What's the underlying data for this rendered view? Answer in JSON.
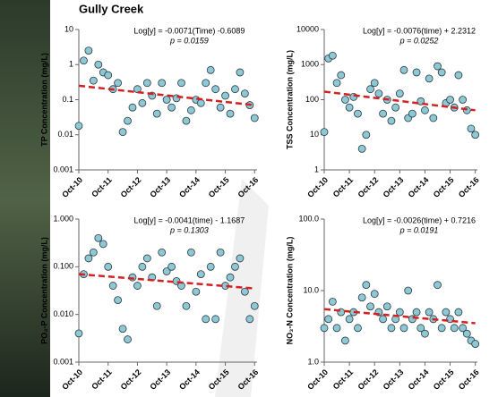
{
  "title": "Gully Creek",
  "chart_data": [
    {
      "type": "scatter",
      "y_label": "TP Concentration (mg/L)",
      "log_y": true,
      "annotation": [
        "Log[y] = -0.0071(Time) -0.6089",
        "p = 0.0159"
      ],
      "ylim": [
        0.001,
        10
      ],
      "yticks": [
        10,
        1,
        0.1,
        0.01,
        0.001
      ],
      "xlim": [
        "2010-10",
        "2016-11"
      ],
      "xticks": [
        {
          "value": "2010-10",
          "label": "Oct-10"
        },
        {
          "value": "2011-10",
          "label": "Oct-11"
        },
        {
          "value": "2012-10",
          "label": "Oct-12"
        },
        {
          "value": "2013-10",
          "label": "Oct-13"
        },
        {
          "value": "2014-10",
          "label": "Oct-14"
        },
        {
          "value": "2015-10",
          "label": "Oct-15"
        },
        {
          "value": "2016-10",
          "label": "Oct-16"
        }
      ],
      "color": "#8ec8d4",
      "x": [
        "2010-10",
        "2010-12",
        "2011-02",
        "2011-04",
        "2011-06",
        "2011-08",
        "2011-10",
        "2011-12",
        "2012-02",
        "2012-04",
        "2012-06",
        "2012-08",
        "2012-10",
        "2012-12",
        "2013-02",
        "2013-04",
        "2013-06",
        "2013-08",
        "2013-10",
        "2013-12",
        "2014-02",
        "2014-04",
        "2014-06",
        "2014-08",
        "2014-10",
        "2014-12",
        "2015-02",
        "2015-04",
        "2015-06",
        "2015-08",
        "2015-10",
        "2015-12",
        "2016-02",
        "2016-04",
        "2016-06",
        "2016-08",
        "2016-10"
      ],
      "values": [
        0.018,
        1.3,
        2.5,
        0.35,
        1.0,
        0.6,
        0.5,
        0.2,
        0.3,
        0.012,
        0.025,
        0.06,
        0.2,
        0.08,
        0.3,
        0.13,
        0.04,
        0.3,
        0.1,
        0.06,
        0.11,
        0.3,
        0.025,
        0.05,
        0.1,
        0.08,
        0.3,
        0.7,
        0.2,
        0.06,
        0.13,
        0.04,
        0.2,
        0.6,
        0.15,
        0.07,
        0.03
      ],
      "trend": {
        "color": "#d42020",
        "x": [
          "2010-10",
          "2016-10"
        ],
        "values": [
          0.25,
          0.07
        ]
      }
    },
    {
      "type": "scatter",
      "y_label": "TSS Concentration (mg/L)",
      "log_y": true,
      "annotation": [
        "Log[y] = -0.0076(time) + 2.2312",
        "p = 0.0252"
      ],
      "ylim": [
        1,
        10000
      ],
      "yticks": [
        10000,
        1000,
        100,
        10,
        1
      ],
      "xlim": [
        "2010-10",
        "2016-11"
      ],
      "xticks": [
        {
          "value": "2010-10",
          "label": "Oct-10"
        },
        {
          "value": "2011-10",
          "label": "Oct-11"
        },
        {
          "value": "2012-10",
          "label": "Oct-12"
        },
        {
          "value": "2013-10",
          "label": "Oct-13"
        },
        {
          "value": "2014-10",
          "label": "Oct-14"
        },
        {
          "value": "2015-10",
          "label": "Oct-15"
        },
        {
          "value": "2016-10",
          "label": "Oct-16"
        }
      ],
      "color": "#8ec8d4",
      "x": [
        "2010-10",
        "2010-12",
        "2011-02",
        "2011-04",
        "2011-06",
        "2011-08",
        "2011-10",
        "2011-12",
        "2012-02",
        "2012-04",
        "2012-06",
        "2012-08",
        "2012-10",
        "2012-12",
        "2013-02",
        "2013-04",
        "2013-06",
        "2013-08",
        "2013-10",
        "2013-12",
        "2014-02",
        "2014-04",
        "2014-06",
        "2014-08",
        "2014-10",
        "2014-12",
        "2015-02",
        "2015-04",
        "2015-06",
        "2015-08",
        "2015-10",
        "2015-12",
        "2016-02",
        "2016-04",
        "2016-06",
        "2016-08",
        "2016-10"
      ],
      "values": [
        12,
        1500,
        1800,
        300,
        500,
        100,
        60,
        120,
        40,
        4,
        10,
        200,
        300,
        150,
        40,
        100,
        25,
        60,
        150,
        700,
        30,
        40,
        600,
        90,
        50,
        400,
        30,
        900,
        600,
        80,
        100,
        60,
        500,
        100,
        50,
        15,
        10
      ],
      "trend": {
        "color": "#d42020",
        "x": [
          "2010-10",
          "2016-10"
        ],
        "values": [
          170,
          50
        ]
      }
    },
    {
      "type": "scatter",
      "y_label": "PO₄-P Concentration (mg/L)",
      "log_y": true,
      "annotation": [
        "Log[y] = -0.0041(time) - 1.1687",
        "p = 0.1303"
      ],
      "ylim": [
        0.001,
        1
      ],
      "yticks": [
        {
          "value": 1,
          "label": "1.000"
        },
        {
          "value": 0.1,
          "label": "0.100"
        },
        {
          "value": 0.01,
          "label": "0.010"
        },
        {
          "value": 0.001,
          "label": "0.001"
        }
      ],
      "xlim": [
        "2010-10",
        "2016-11"
      ],
      "xticks": [
        {
          "value": "2010-10",
          "label": "Oct-10"
        },
        {
          "value": "2011-10",
          "label": "Oct-11"
        },
        {
          "value": "2012-10",
          "label": "Oct-12"
        },
        {
          "value": "2013-10",
          "label": "Oct-13"
        },
        {
          "value": "2014-10",
          "label": "Oct-14"
        },
        {
          "value": "2015-10",
          "label": "Oct-15"
        },
        {
          "value": "2016-10",
          "label": "Oct-16"
        }
      ],
      "color": "#8ec8d4",
      "x": [
        "2010-10",
        "2010-12",
        "2011-02",
        "2011-04",
        "2011-06",
        "2011-08",
        "2011-10",
        "2011-12",
        "2012-02",
        "2012-04",
        "2012-06",
        "2012-08",
        "2012-10",
        "2012-12",
        "2013-02",
        "2013-04",
        "2013-06",
        "2013-08",
        "2013-10",
        "2013-12",
        "2014-02",
        "2014-04",
        "2014-06",
        "2014-08",
        "2014-10",
        "2014-12",
        "2015-02",
        "2015-04",
        "2015-06",
        "2015-08",
        "2015-10",
        "2015-12",
        "2016-02",
        "2016-04",
        "2016-06",
        "2016-08",
        "2016-10"
      ],
      "values": [
        0.004,
        0.07,
        0.15,
        0.2,
        0.4,
        0.3,
        0.1,
        0.04,
        0.02,
        0.005,
        0.003,
        0.06,
        0.04,
        0.1,
        0.15,
        0.06,
        0.015,
        0.2,
        0.08,
        0.1,
        0.05,
        0.04,
        0.015,
        0.2,
        0.03,
        0.07,
        0.008,
        0.1,
        0.008,
        0.2,
        0.04,
        0.06,
        0.1,
        0.15,
        0.03,
        0.008,
        0.015
      ],
      "trend": {
        "color": "#d42020",
        "x": [
          "2010-10",
          "2016-10"
        ],
        "values": [
          0.07,
          0.035
        ]
      }
    },
    {
      "type": "scatter",
      "y_label": "NO₃-N Concentration (mg/L)",
      "log_y": true,
      "annotation": [
        "Log[y] = -0.0026(time) + 0.7216",
        "p = 0.0191"
      ],
      "ylim": [
        1,
        100
      ],
      "yticks": [
        {
          "value": 100,
          "label": "100.0"
        },
        {
          "value": 10,
          "label": "10.0"
        },
        {
          "value": 1,
          "label": "1.0"
        }
      ],
      "xlim": [
        "2010-10",
        "2016-11"
      ],
      "xticks": [
        {
          "value": "2010-10",
          "label": "Oct-10"
        },
        {
          "value": "2011-10",
          "label": "Oct-11"
        },
        {
          "value": "2012-10",
          "label": "Oct-12"
        },
        {
          "value": "2013-10",
          "label": "Oct-13"
        },
        {
          "value": "2014-10",
          "label": "Oct-14"
        },
        {
          "value": "2015-10",
          "label": "Oct-15"
        },
        {
          "value": "2016-10",
          "label": "Oct-16"
        }
      ],
      "color": "#8ec8d4",
      "x": [
        "2010-10",
        "2010-12",
        "2011-02",
        "2011-04",
        "2011-06",
        "2011-08",
        "2011-10",
        "2011-12",
        "2012-02",
        "2012-04",
        "2012-06",
        "2012-08",
        "2012-10",
        "2012-12",
        "2013-02",
        "2013-04",
        "2013-06",
        "2013-08",
        "2013-10",
        "2013-12",
        "2014-02",
        "2014-04",
        "2014-06",
        "2014-08",
        "2014-10",
        "2014-12",
        "2015-02",
        "2015-04",
        "2015-06",
        "2015-08",
        "2015-10",
        "2015-12",
        "2016-02",
        "2016-04",
        "2016-06",
        "2016-08",
        "2016-10"
      ],
      "values": [
        3,
        4,
        7,
        3,
        5,
        2,
        4,
        5,
        3,
        8,
        12,
        6,
        9,
        5,
        4,
        6,
        3,
        4,
        5,
        3,
        10,
        4,
        5,
        3,
        2.5,
        5,
        4,
        12,
        3,
        5,
        4,
        3,
        5,
        3,
        2.5,
        2,
        1.8
      ],
      "trend": {
        "color": "#d42020",
        "x": [
          "2010-10",
          "2016-10"
        ],
        "values": [
          5.5,
          3.5
        ]
      }
    }
  ]
}
